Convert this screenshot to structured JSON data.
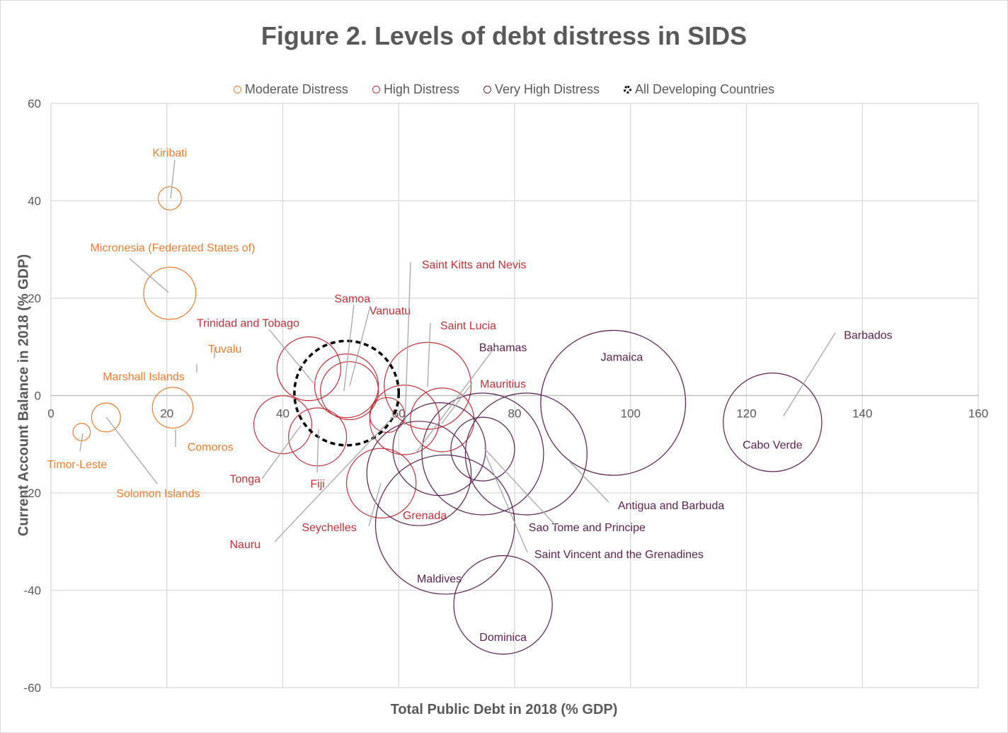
{
  "colors": {
    "moderate": "#ed7d31",
    "high": "#c0313a",
    "very_high": "#5b2150",
    "all": "#000000",
    "grid": "#d9d9d9",
    "axis_text": "#595959",
    "leader": "#a6a6a6"
  },
  "chart_data": {
    "type": "bubble",
    "title": "Figure 2. Levels of debt distress in SIDS",
    "xlabel": "Total Public Debt in 2018 (% GDP)",
    "ylabel": "Current Account Balance in 2018 (% GDP)",
    "xlim": [
      0,
      160
    ],
    "ylim": [
      -60,
      60
    ],
    "xticks": [
      "0",
      "20",
      "40",
      "60",
      "80",
      "100",
      "120",
      "140",
      "160"
    ],
    "yticks": [
      "60",
      "40",
      "20",
      "0",
      "-20",
      "-40",
      "-60"
    ],
    "grid": "vertical and horizontal",
    "legend_position": "top",
    "legend": [
      {
        "label": "Moderate Distress",
        "group": "moderate"
      },
      {
        "label": "High Distress",
        "group": "high"
      },
      {
        "label": "Very High Distress",
        "group": "very_high"
      },
      {
        "label": "All Developing Countries",
        "group": "all"
      }
    ],
    "points": [
      {
        "name": "Kiribati",
        "group": "moderate",
        "x": 20.5,
        "y": 40.5,
        "r": 2,
        "label_x": 20.5,
        "label_y": 50
      },
      {
        "name": "Micronesia (Federated States of)",
        "group": "moderate",
        "x": 20.5,
        "y": 21,
        "r": 4.5,
        "label_x": 21,
        "label_y": 30.5
      },
      {
        "name": "Tuvalu",
        "group": "moderate",
        "x": 28,
        "y": 10,
        "r": 0,
        "label_x": 30,
        "label_y": 9.7
      },
      {
        "name": "Marshall Islands",
        "group": "moderate",
        "x": 25.5,
        "y": 5.5,
        "r": 0,
        "label_x": 16,
        "label_y": 4
      },
      {
        "name": "Comoros",
        "group": "moderate",
        "x": 21,
        "y": -2.5,
        "r": 3.5,
        "label_x": 27.5,
        "label_y": -10.5
      },
      {
        "name": "Timor-Leste",
        "group": "moderate",
        "x": 5.3,
        "y": -7.5,
        "r": 1.5,
        "label_x": 4.5,
        "label_y": -14
      },
      {
        "name": "Solomon Islands",
        "group": "moderate",
        "x": 9.5,
        "y": -4.5,
        "r": 2.5,
        "label_x": 18.5,
        "label_y": -20
      },
      {
        "name": "Trinidad and Tobago",
        "group": "high",
        "x": 44.5,
        "y": 5.5,
        "r": 5.5,
        "label_x": 34,
        "label_y": 15
      },
      {
        "name": "Samoa",
        "group": "high",
        "x": 51.5,
        "y": 1,
        "r": 5,
        "label_x": 52,
        "label_y": 20
      },
      {
        "name": "Vanuatu",
        "group": "high",
        "x": 51,
        "y": 2,
        "r": 5.5,
        "label_x": 58.5,
        "label_y": 17.5
      },
      {
        "name": "Saint Kitts and Nevis",
        "group": "high",
        "x": 61,
        "y": 0,
        "r": 0,
        "label_x": 73,
        "label_y": 27
      },
      {
        "name": "Saint Lucia",
        "group": "high",
        "x": 65,
        "y": 2,
        "r": 7.5,
        "label_x": 72,
        "label_y": 14.5
      },
      {
        "name": "Mauritius",
        "group": "high",
        "x": 67.5,
        "y": -5,
        "r": 5.5,
        "label_x": 78,
        "label_y": 2.5
      },
      {
        "name": "Tonga",
        "group": "high",
        "x": 40,
        "y": -6,
        "r": 5,
        "label_x": 33.5,
        "label_y": -17
      },
      {
        "name": "Fiji",
        "group": "high",
        "x": 46,
        "y": -8.5,
        "r": 5,
        "label_x": 46,
        "label_y": -18
      },
      {
        "name": "Seychelles",
        "group": "high",
        "x": 57,
        "y": -18,
        "r": 6,
        "label_x": 48,
        "label_y": -27
      },
      {
        "name": "Nauru",
        "group": "high",
        "x": 58,
        "y": -4,
        "r": 3,
        "label_x": 33.5,
        "label_y": -30.5
      },
      {
        "name": "Grenada",
        "group": "high",
        "x": 61,
        "y": -5,
        "r": 6,
        "label_x": 64.5,
        "label_y": -24.5
      },
      {
        "name": "Bahamas",
        "group": "very_high",
        "x": 67,
        "y": -11,
        "r": 8,
        "label_x": 78,
        "label_y": 10
      },
      {
        "name": "Jamaica",
        "group": "very_high",
        "x": 97,
        "y": -1.5,
        "r": 12.5,
        "label_x": 98.5,
        "label_y": 8
      },
      {
        "name": "Barbados",
        "group": "very_high",
        "x": 125,
        "y": -4,
        "r": 0,
        "label_x": 141,
        "label_y": 12.5
      },
      {
        "name": "Cabo Verde",
        "group": "very_high",
        "x": 124.5,
        "y": -5.5,
        "r": 8.5,
        "label_x": 124.5,
        "label_y": -10
      },
      {
        "name": "Antigua and Barbuda",
        "group": "very_high",
        "x": 82,
        "y": -12,
        "r": 10.5,
        "label_x": 107,
        "label_y": -22.5
      },
      {
        "name": "Sao Tome and Principe",
        "group": "very_high",
        "x": 74.5,
        "y": -11,
        "r": 5.5,
        "label_x": 92.5,
        "label_y": -27
      },
      {
        "name": "Saint Vincent and the Grenadines",
        "group": "very_high",
        "x": 74.5,
        "y": -12,
        "r": 10.5,
        "label_x": 98,
        "label_y": -32.5
      },
      {
        "name": "Maldives",
        "group": "very_high",
        "x": 68,
        "y": -26.5,
        "r": 12,
        "label_x": 67,
        "label_y": -37.5
      },
      {
        "name": "Dominica",
        "group": "very_high",
        "x": 78,
        "y": -43,
        "r": 8.5,
        "label_x": 78,
        "label_y": -49.5
      },
      {
        "name": "Grenada_vh",
        "group": "very_high",
        "x": 63.5,
        "y": -16,
        "r": 9,
        "label_x": null,
        "label_y": null
      }
    ],
    "all_developing": {
      "x": 51,
      "y": 0.5,
      "r": 9
    }
  }
}
